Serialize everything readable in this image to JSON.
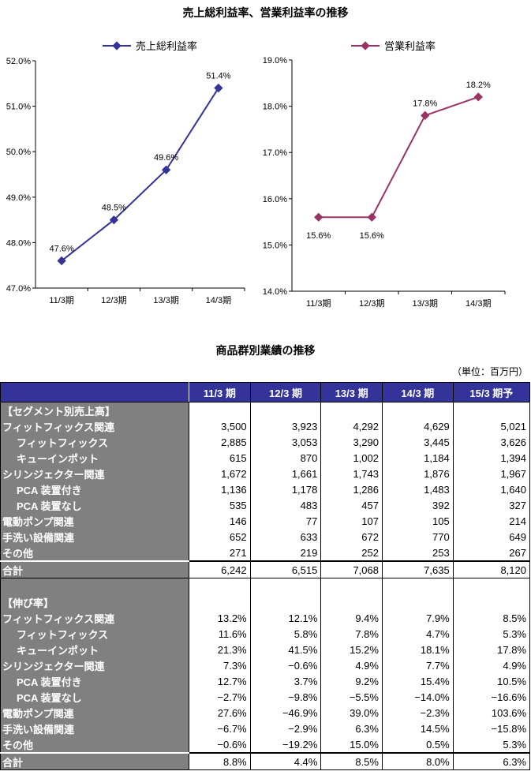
{
  "chart_title": "売上総利益率、営業利益率の推移",
  "chart_data": [
    {
      "type": "line",
      "title": "",
      "legend": "売上総利益率",
      "legend_position": "top",
      "color": "#333399",
      "categories": [
        "11/3期",
        "12/3期",
        "13/3期",
        "14/3期"
      ],
      "values": [
        47.6,
        48.5,
        49.6,
        51.4
      ],
      "labels": [
        "47.6%",
        "48.5%",
        "49.6%",
        "51.4%"
      ],
      "ylim": [
        47.0,
        52.0
      ],
      "yticks": [
        "47.0%",
        "48.0%",
        "49.0%",
        "50.0%",
        "51.0%",
        "52.0%"
      ],
      "xlabel": "",
      "ylabel": ""
    },
    {
      "type": "line",
      "title": "",
      "legend": "営業利益率",
      "legend_position": "top",
      "color": "#993366",
      "categories": [
        "11/3期",
        "12/3期",
        "13/3期",
        "14/3期"
      ],
      "values": [
        15.6,
        15.6,
        17.8,
        18.2
      ],
      "labels": [
        "15.6%",
        "15.6%",
        "17.8%",
        "18.2%"
      ],
      "ylim": [
        14.0,
        19.0
      ],
      "yticks": [
        "14.0%",
        "15.0%",
        "16.0%",
        "17.0%",
        "18.0%",
        "19.0%"
      ],
      "xlabel": "",
      "ylabel": ""
    }
  ],
  "table": {
    "title": "商品群別業績の推移",
    "unit": "（単位：百万円）",
    "headers": [
      "11/3 期",
      "12/3 期",
      "13/3 期",
      "14/3 期",
      "15/3 期予"
    ],
    "rows": [
      {
        "label": "【セグメント別売上高】",
        "indent": false,
        "values": [
          "",
          "",
          "",
          "",
          ""
        ]
      },
      {
        "label": "フィットフィックス関連",
        "indent": false,
        "values": [
          "3,500",
          "3,923",
          "4,292",
          "4,629",
          "5,021"
        ]
      },
      {
        "label": "フィットフィックス",
        "indent": true,
        "values": [
          "2,885",
          "3,053",
          "3,290",
          "3,445",
          "3,626"
        ]
      },
      {
        "label": "キューインポット",
        "indent": true,
        "values": [
          "615",
          "870",
          "1,002",
          "1,184",
          "1,394"
        ]
      },
      {
        "label": "シリンジェクター関連",
        "indent": false,
        "values": [
          "1,672",
          "1,661",
          "1,743",
          "1,876",
          "1,967"
        ]
      },
      {
        "label": "PCA 装置付き",
        "indent": true,
        "values": [
          "1,136",
          "1,178",
          "1,286",
          "1,483",
          "1,640"
        ]
      },
      {
        "label": "PCA 装置なし",
        "indent": true,
        "values": [
          "535",
          "483",
          "457",
          "392",
          "327"
        ]
      },
      {
        "label": "電動ポンプ関連",
        "indent": false,
        "values": [
          "146",
          "77",
          "107",
          "105",
          "214"
        ]
      },
      {
        "label": "手洗い設備関連",
        "indent": false,
        "values": [
          "652",
          "633",
          "672",
          "770",
          "649"
        ]
      },
      {
        "label": "その他",
        "indent": false,
        "values": [
          "271",
          "219",
          "252",
          "253",
          "267"
        ]
      },
      {
        "label": "合計",
        "indent": false,
        "total": true,
        "values": [
          "6,242",
          "6,515",
          "7,068",
          "7,635",
          "8,120"
        ]
      },
      {
        "label": "",
        "indent": false,
        "values": [
          "",
          "",
          "",
          "",
          ""
        ]
      },
      {
        "label": "【伸び率】",
        "indent": false,
        "values": [
          "",
          "",
          "",
          "",
          ""
        ]
      },
      {
        "label": "フィットフィックス関連",
        "indent": false,
        "values": [
          "13.2%",
          "12.1%",
          "9.4%",
          "7.9%",
          "8.5%"
        ]
      },
      {
        "label": "フィットフィックス",
        "indent": true,
        "values": [
          "11.6%",
          "5.8%",
          "7.8%",
          "4.7%",
          "5.3%"
        ]
      },
      {
        "label": "キューインポット",
        "indent": true,
        "values": [
          "21.3%",
          "41.5%",
          "15.2%",
          "18.1%",
          "17.8%"
        ]
      },
      {
        "label": "シリンジェクター関連",
        "indent": false,
        "values": [
          "7.3%",
          "−0.6%",
          "4.9%",
          "7.7%",
          "4.9%"
        ]
      },
      {
        "label": "PCA 装置付き",
        "indent": true,
        "values": [
          "12.7%",
          "3.7%",
          "9.2%",
          "15.4%",
          "10.5%"
        ]
      },
      {
        "label": "PCA 装置なし",
        "indent": true,
        "values": [
          "−2.7%",
          "−9.8%",
          "−5.5%",
          "−14.0%",
          "−16.6%"
        ]
      },
      {
        "label": "電動ポンプ関連",
        "indent": false,
        "values": [
          "27.6%",
          "−46.9%",
          "39.0%",
          "−2.3%",
          "103.6%"
        ]
      },
      {
        "label": "手洗い設備関連",
        "indent": false,
        "values": [
          "−6.7%",
          "−2.9%",
          "6.3%",
          "14.5%",
          "−15.8%"
        ]
      },
      {
        "label": "その他",
        "indent": false,
        "values": [
          "−0.6%",
          "−19.2%",
          "15.0%",
          "0.5%",
          "5.3%"
        ]
      },
      {
        "label": "合計",
        "indent": false,
        "total": true,
        "values": [
          "8.8%",
          "4.4%",
          "8.5%",
          "8.0%",
          "6.3%"
        ]
      }
    ]
  }
}
